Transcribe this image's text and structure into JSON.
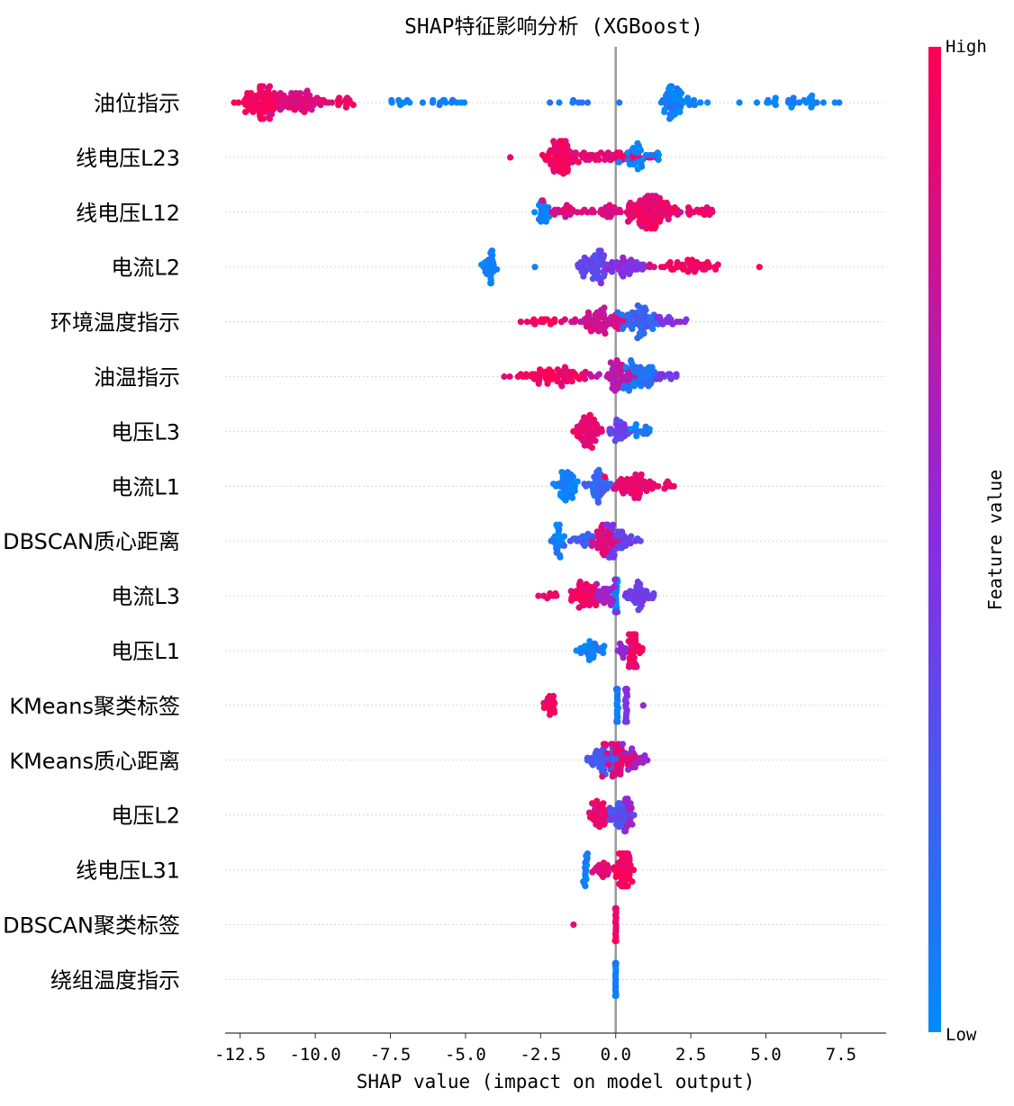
{
  "chart_data": {
    "type": "scatter",
    "subtype": "shap-beeswarm",
    "title": "SHAP特征影响分析 (XGBoost)",
    "xlabel": "SHAP value (impact on model output)",
    "xlim": [
      -13.0,
      9.0
    ],
    "xticks": [
      -12.5,
      -10.0,
      -7.5,
      -5.0,
      -2.5,
      0.0,
      2.5,
      5.0,
      7.5
    ],
    "xtick_labels": [
      "-12.5",
      "-10.0",
      "-7.5",
      "-5.0",
      "-2.5",
      "0.0",
      "2.5",
      "5.0",
      "7.5"
    ],
    "colorbar": {
      "label": "Feature value",
      "high_label": "High",
      "low_label": "Low",
      "low_color": "#008bfb",
      "mid_color": "#8a2be2",
      "high_color": "#ff0052"
    },
    "features": [
      {
        "name": "油位指示",
        "clusters": [
          {
            "c": -11.8,
            "s": 0.5,
            "n": 80,
            "v": 0.95
          },
          {
            "c": -10.6,
            "s": 0.7,
            "n": 70,
            "v": 0.85
          },
          {
            "c": -9.0,
            "s": 0.4,
            "n": 15,
            "v": 0.9
          },
          {
            "c": -6.0,
            "s": 1.3,
            "n": 22,
            "v": 0.05
          },
          {
            "c": 1.9,
            "s": 0.25,
            "n": 50,
            "v": 0.05
          },
          {
            "c": 2.6,
            "s": 0.3,
            "n": 10,
            "v": 0.05
          },
          {
            "c": 6.0,
            "s": 1.2,
            "n": 30,
            "v": 0.03
          },
          {
            "c": -1.5,
            "s": 1.5,
            "n": 8,
            "v": 0.1
          }
        ]
      },
      {
        "name": "线电压L23",
        "clusters": [
          {
            "c": -1.9,
            "s": 0.35,
            "n": 70,
            "v": 0.95
          },
          {
            "c": -0.5,
            "s": 1.2,
            "n": 60,
            "v": 0.9
          },
          {
            "c": 0.8,
            "s": 0.5,
            "n": 25,
            "v": 0.05
          },
          {
            "c": -3.5,
            "s": 0.1,
            "n": 1,
            "v": 0.95
          }
        ]
      },
      {
        "name": "线电压L12",
        "clusters": [
          {
            "c": -2.4,
            "s": 0.2,
            "n": 25,
            "v": 0.05
          },
          {
            "c": 1.2,
            "s": 0.5,
            "n": 100,
            "v": 0.93
          },
          {
            "c": -0.3,
            "s": 1.4,
            "n": 60,
            "v": 0.85
          },
          {
            "c": 3.0,
            "s": 0.5,
            "n": 15,
            "v": 0.95
          }
        ]
      },
      {
        "name": "电流L2",
        "clusters": [
          {
            "c": -4.2,
            "s": 0.2,
            "n": 30,
            "v": 0.05
          },
          {
            "c": -0.7,
            "s": 0.5,
            "n": 60,
            "v": 0.35
          },
          {
            "c": 0.3,
            "s": 0.5,
            "n": 40,
            "v": 0.5
          },
          {
            "c": 2.5,
            "s": 0.9,
            "n": 45,
            "v": 0.95
          },
          {
            "c": 4.8,
            "s": 0.05,
            "n": 1,
            "v": 0.95
          },
          {
            "c": -2.8,
            "s": 0.1,
            "n": 1,
            "v": 0.1
          }
        ]
      },
      {
        "name": "环境温度指示",
        "clusters": [
          {
            "c": -0.6,
            "s": 0.7,
            "n": 70,
            "v": 0.8
          },
          {
            "c": 0.9,
            "s": 0.4,
            "n": 60,
            "v": 0.2
          },
          {
            "c": -2.5,
            "s": 0.6,
            "n": 15,
            "v": 0.95
          },
          {
            "c": 2.0,
            "s": 0.5,
            "n": 15,
            "v": 0.5
          }
        ]
      },
      {
        "name": "油温指示",
        "clusters": [
          {
            "c": -2.0,
            "s": 0.9,
            "n": 70,
            "v": 0.95
          },
          {
            "c": 0.0,
            "s": 0.5,
            "n": 60,
            "v": 0.7
          },
          {
            "c": 0.9,
            "s": 0.4,
            "n": 50,
            "v": 0.12
          },
          {
            "c": 1.7,
            "s": 0.3,
            "n": 10,
            "v": 0.4
          }
        ]
      },
      {
        "name": "电压L3",
        "clusters": [
          {
            "c": -0.9,
            "s": 0.3,
            "n": 60,
            "v": 0.9
          },
          {
            "c": 0.1,
            "s": 0.3,
            "n": 30,
            "v": 0.4
          },
          {
            "c": 0.8,
            "s": 0.3,
            "n": 15,
            "v": 0.08
          }
        ]
      },
      {
        "name": "电流L1",
        "clusters": [
          {
            "c": -1.6,
            "s": 0.25,
            "n": 45,
            "v": 0.05
          },
          {
            "c": -0.6,
            "s": 0.3,
            "n": 40,
            "v": 0.2
          },
          {
            "c": 0.6,
            "s": 0.6,
            "n": 60,
            "v": 0.9
          },
          {
            "c": 1.7,
            "s": 0.2,
            "n": 8,
            "v": 0.95
          }
        ]
      },
      {
        "name": "DBSCAN质心距离",
        "clusters": [
          {
            "c": -1.9,
            "s": 0.15,
            "n": 25,
            "v": 0.05
          },
          {
            "c": -0.4,
            "s": 0.35,
            "n": 60,
            "v": 0.85
          },
          {
            "c": 0.2,
            "s": 0.35,
            "n": 35,
            "v": 0.4
          },
          {
            "c": -1.2,
            "s": 0.3,
            "n": 15,
            "v": 0.25
          }
        ]
      },
      {
        "name": "电流L3",
        "clusters": [
          {
            "c": -1.0,
            "s": 0.4,
            "n": 50,
            "v": 0.93
          },
          {
            "c": -2.2,
            "s": 0.2,
            "n": 8,
            "v": 0.95
          },
          {
            "c": 0.0,
            "s": 0.05,
            "n": 25,
            "v": 0.05
          },
          {
            "c": 0.8,
            "s": 0.3,
            "n": 40,
            "v": 0.4
          },
          {
            "c": -0.3,
            "s": 0.25,
            "n": 25,
            "v": 0.6
          }
        ]
      },
      {
        "name": "电压L1",
        "clusters": [
          {
            "c": -0.8,
            "s": 0.4,
            "n": 30,
            "v": 0.05
          },
          {
            "c": 0.6,
            "s": 0.15,
            "n": 45,
            "v": 0.93
          },
          {
            "c": 0.2,
            "s": 0.15,
            "n": 10,
            "v": 0.5
          }
        ]
      },
      {
        "name": "KMeans聚类标签",
        "clusters": [
          {
            "c": -2.2,
            "s": 0.2,
            "n": 20,
            "v": 0.95
          },
          {
            "c": 0.05,
            "s": 0.02,
            "n": 35,
            "v": 0.05
          },
          {
            "c": 0.35,
            "s": 0.02,
            "n": 35,
            "v": 0.45
          },
          {
            "c": 0.9,
            "s": 0.03,
            "n": 1,
            "v": 0.55
          }
        ]
      },
      {
        "name": "KMeans质心距离",
        "clusters": [
          {
            "c": -0.4,
            "s": 0.35,
            "n": 50,
            "v": 0.25
          },
          {
            "c": 0.2,
            "s": 0.35,
            "n": 50,
            "v": 0.88
          },
          {
            "c": 0.6,
            "s": 0.25,
            "n": 15,
            "v": 0.55
          }
        ]
      },
      {
        "name": "电压L2",
        "clusters": [
          {
            "c": -0.5,
            "s": 0.25,
            "n": 40,
            "v": 0.9
          },
          {
            "c": 0.2,
            "s": 0.3,
            "n": 40,
            "v": 0.3
          },
          {
            "c": 0.4,
            "s": 0.15,
            "n": 15,
            "v": 0.6
          }
        ]
      },
      {
        "name": "线电压L31",
        "clusters": [
          {
            "c": 0.3,
            "s": 0.2,
            "n": 70,
            "v": 0.95
          },
          {
            "c": -1.0,
            "s": 0.05,
            "n": 15,
            "v": 0.05
          },
          {
            "c": -0.4,
            "s": 0.25,
            "n": 20,
            "v": 0.9
          }
        ]
      },
      {
        "name": "DBSCAN聚类标签",
        "clusters": [
          {
            "c": 0.0,
            "s": 0.01,
            "n": 60,
            "v": 0.95
          },
          {
            "c": -1.4,
            "s": 0.01,
            "n": 1,
            "v": 0.95
          }
        ]
      },
      {
        "name": "绕组温度指示",
        "clusters": [
          {
            "c": 0.0,
            "s": 0.01,
            "n": 60,
            "v": 0.05
          }
        ]
      }
    ]
  }
}
